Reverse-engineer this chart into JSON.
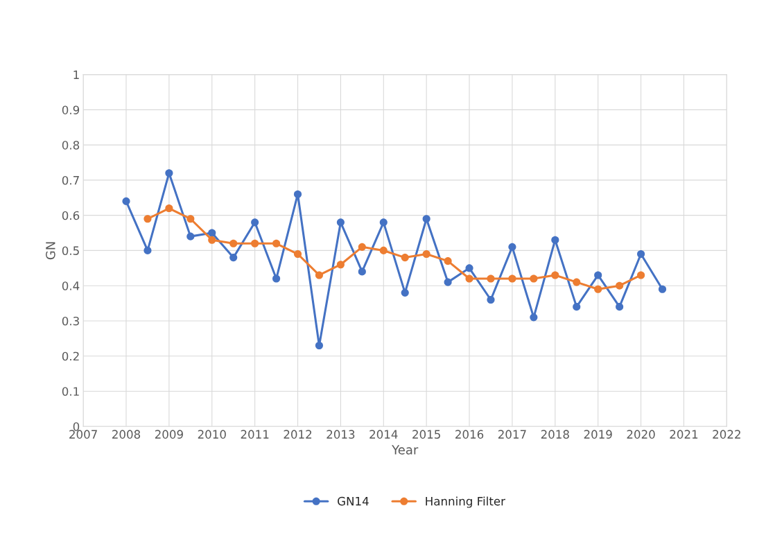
{
  "chart_data": {
    "type": "line",
    "xlabel": "Year",
    "ylabel": "GN",
    "xlim": [
      2007,
      2022
    ],
    "xticks": [
      2007,
      2008,
      2009,
      2010,
      2011,
      2012,
      2013,
      2014,
      2015,
      2016,
      2017,
      2018,
      2019,
      2020,
      2021,
      2022
    ],
    "ylim": [
      0,
      1
    ],
    "yticks": [
      0,
      {
        "value": 0.1,
        "label": "0.1"
      },
      {
        "value": 0.2,
        "label": "0.2"
      },
      {
        "value": 0.3,
        "label": "0.3"
      },
      {
        "value": 0.4,
        "label": "0.4"
      },
      {
        "value": 0.5,
        "label": "0.5"
      },
      {
        "value": 0.6,
        "label": "0.6"
      },
      {
        "value": 0.7,
        "label": "0.7"
      },
      {
        "value": 0.8,
        "label": "0.8"
      },
      {
        "value": 0.9,
        "label": "0.9"
      },
      1
    ],
    "grid": true,
    "legend": "bottom",
    "marker": "circle",
    "line_style": "solid",
    "series": [
      {
        "name": "GN14",
        "color": "#4472c4",
        "x": [
          2008,
          2008.5,
          2009,
          2009.5,
          2010,
          2010.5,
          2011,
          2011.5,
          2012,
          2012.5,
          2013,
          2013.5,
          2014,
          2014.5,
          2015,
          2015.5,
          2016,
          2016.5,
          2017,
          2017.5,
          2018,
          2018.5,
          2019,
          2019.5,
          2020,
          2020.5
        ],
        "values": [
          0.64,
          0.5,
          0.72,
          0.54,
          0.55,
          0.48,
          0.58,
          0.42,
          0.66,
          0.23,
          0.58,
          0.44,
          0.58,
          0.38,
          0.59,
          0.41,
          0.45,
          0.36,
          0.51,
          0.31,
          0.53,
          0.34,
          0.43,
          0.34,
          0.49,
          0.39
        ]
      },
      {
        "name": "Hanning Filter",
        "color": "#ed7d31",
        "x": [
          2008.5,
          2009,
          2009.5,
          2010,
          2010.5,
          2011,
          2011.5,
          2012,
          2012.5,
          2013,
          2013.5,
          2014,
          2014.5,
          2015,
          2015.5,
          2016,
          2016.5,
          2017,
          2017.5,
          2018,
          2018.5,
          2019,
          2019.5,
          2020
        ],
        "values": [
          0.59,
          0.62,
          0.59,
          0.53,
          0.52,
          0.52,
          0.52,
          0.49,
          0.43,
          0.46,
          0.51,
          0.5,
          0.48,
          0.49,
          0.47,
          0.42,
          0.42,
          0.42,
          0.42,
          0.43,
          0.41,
          0.39,
          0.4,
          0.43
        ]
      }
    ]
  }
}
